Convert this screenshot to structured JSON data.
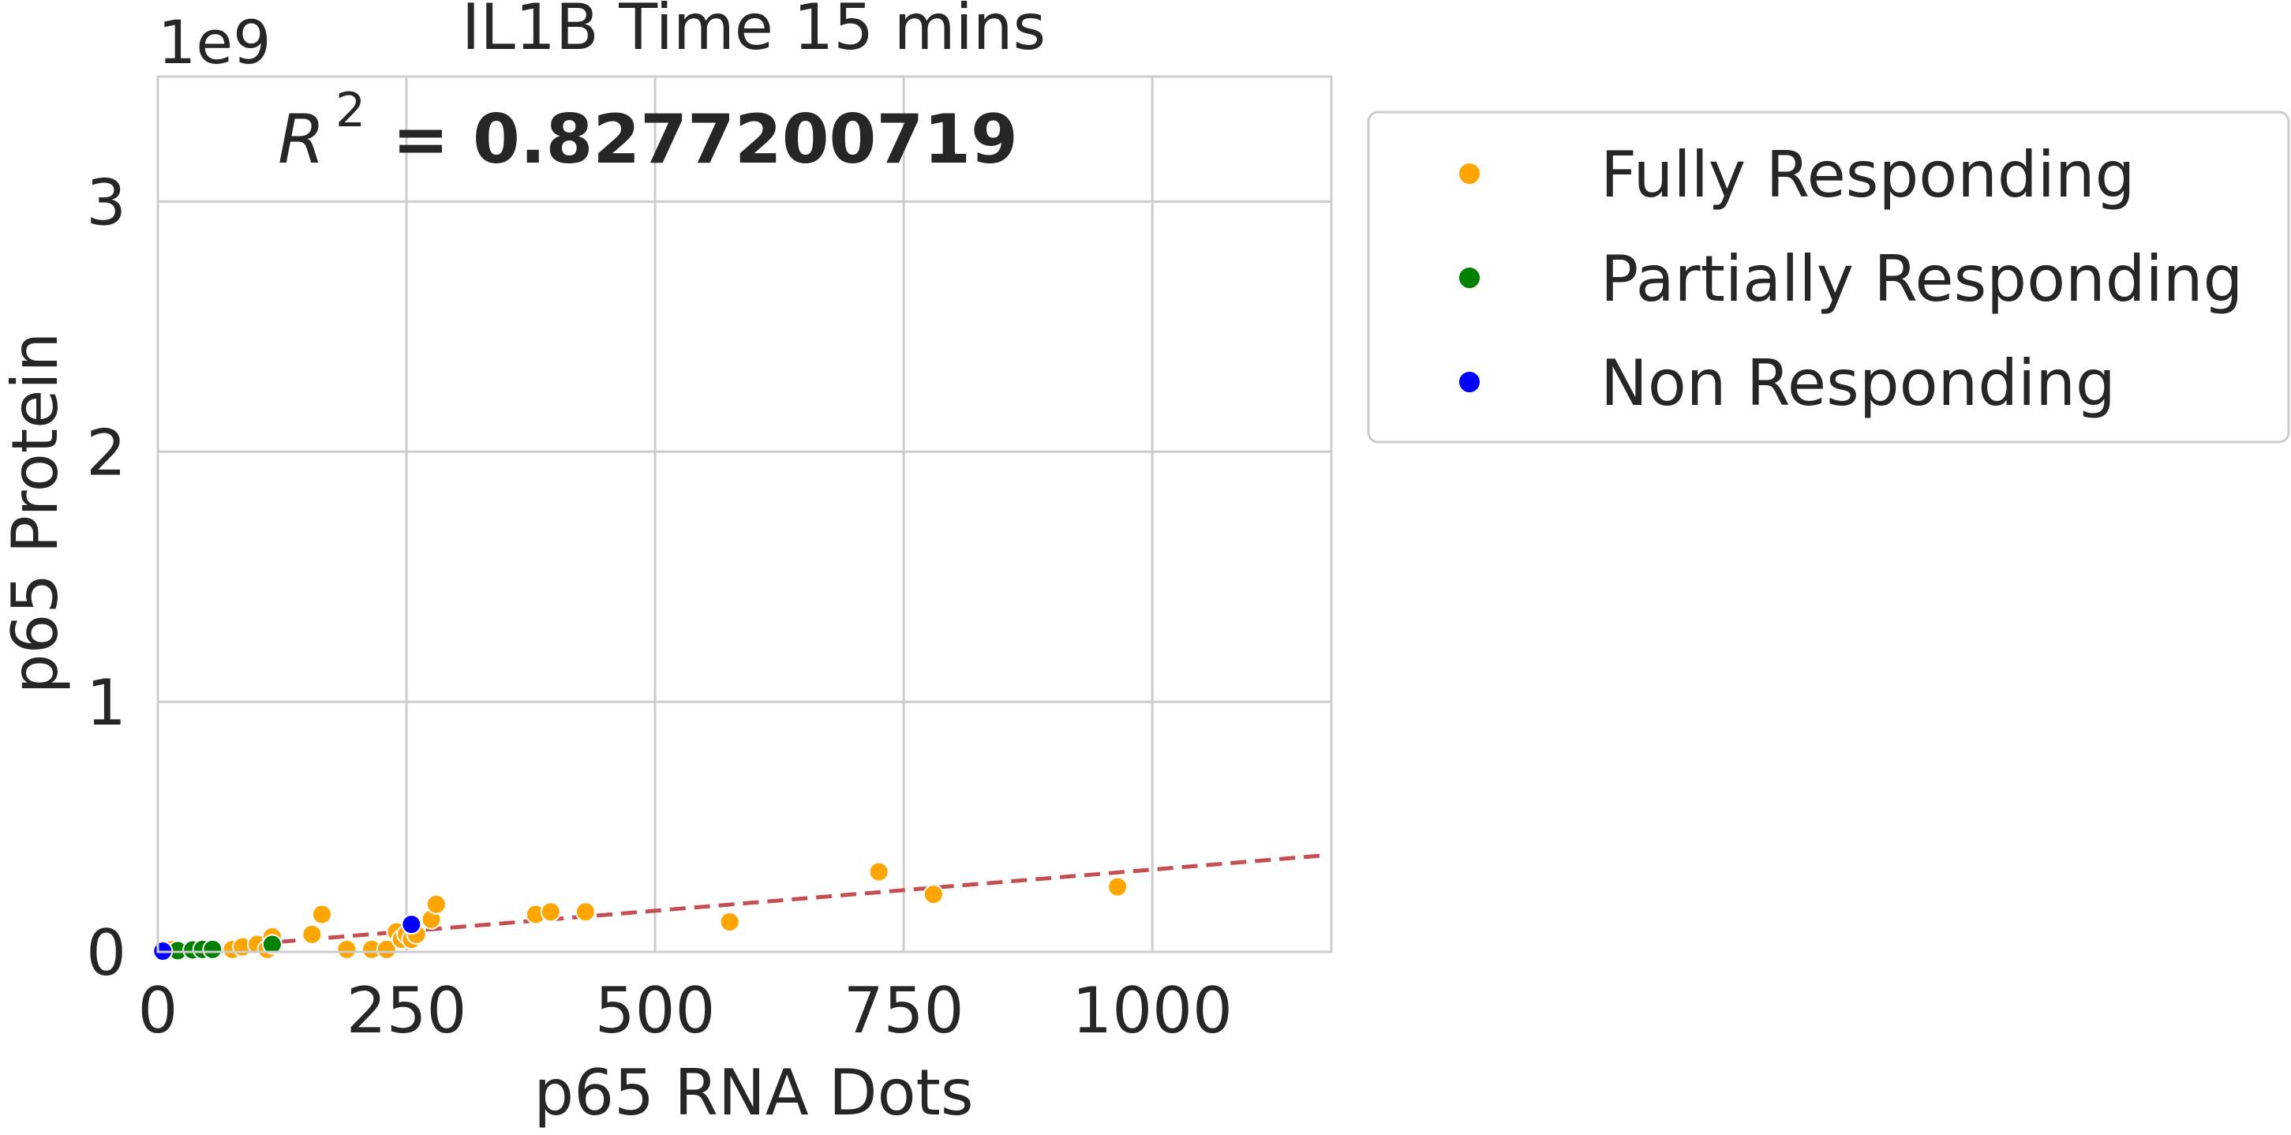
{
  "chart_data": {
    "type": "scatter",
    "title": "IL1B Time 15 mins",
    "annotation": {
      "r2_symbol": "R",
      "r2_exponent": "2",
      "r2_text": "= 0.8277200719"
    },
    "xlabel": "p65 RNA Dots",
    "ylabel": "p65 Protein",
    "y_offset_label": "1e9",
    "xlim": [
      0,
      1180
    ],
    "ylim": [
      0,
      3.5
    ],
    "x_ticks": [
      {
        "value": 0,
        "label": "0"
      },
      {
        "value": 250,
        "label": "250"
      },
      {
        "value": 500,
        "label": "500"
      },
      {
        "value": 750,
        "label": "750"
      },
      {
        "value": 1000,
        "label": "1000"
      }
    ],
    "y_ticks": [
      {
        "value": 0,
        "label": "0"
      },
      {
        "value": 1,
        "label": "1"
      },
      {
        "value": 2,
        "label": "2"
      },
      {
        "value": 3,
        "label": "3"
      }
    ],
    "grid": true,
    "legend_position": "outside-right-top",
    "series": [
      {
        "name": "Fully Responding",
        "color": "#FFA500",
        "x": [
          15,
          75,
          85,
          100,
          110,
          115,
          155,
          165,
          190,
          215,
          230,
          240,
          245,
          250,
          255,
          260,
          275,
          280,
          380,
          395,
          430,
          575,
          725,
          780,
          965
        ],
        "y": [
          0.01,
          0.01,
          0.02,
          0.03,
          0.01,
          0.06,
          0.07,
          0.15,
          0.01,
          0.01,
          0.01,
          0.08,
          0.05,
          0.07,
          0.05,
          0.07,
          0.13,
          0.19,
          0.15,
          0.16,
          0.16,
          0.12,
          0.32,
          0.23,
          0.26
        ]
      },
      {
        "name": "Partially Responding",
        "color": "#008000",
        "x": [
          20,
          35,
          45,
          55,
          115
        ],
        "y": [
          0.005,
          0.008,
          0.01,
          0.01,
          0.03
        ]
      },
      {
        "name": "Non Responding",
        "color": "#0000FF",
        "x": [
          5,
          255
        ],
        "y": [
          0.003,
          0.11
        ]
      }
    ],
    "fit_line": {
      "color": "#C44E52",
      "style": "dashed",
      "x": [
        0,
        1170
      ],
      "y": [
        0.0,
        0.385
      ]
    }
  }
}
